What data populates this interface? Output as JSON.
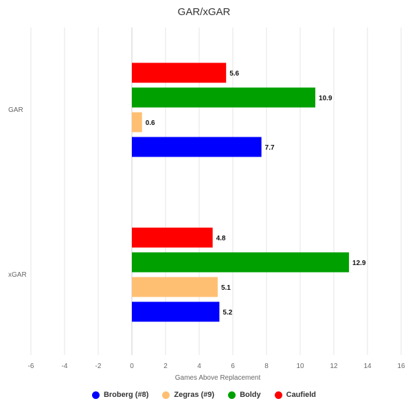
{
  "chart_data": {
    "type": "bar",
    "orientation": "horizontal",
    "title": "GAR/xGAR",
    "xlabel": "Games Above Replacement",
    "ylabel": "",
    "categories": [
      "GAR",
      "xGAR"
    ],
    "xlim": [
      -6,
      16
    ],
    "xticks": [
      "-6",
      "-4",
      "-2",
      "0",
      "2",
      "4",
      "6",
      "8",
      "10",
      "12",
      "14",
      "16"
    ],
    "grid": "vertical",
    "legend_position": "bottom",
    "series": [
      {
        "name": "Broberg (#8)",
        "color": "#0000ff",
        "values": [
          7.7,
          5.2
        ]
      },
      {
        "name": "Zegras (#9)",
        "color": "#ffbf73",
        "values": [
          0.6,
          5.1
        ]
      },
      {
        "name": "Boldy",
        "color": "#00a000",
        "values": [
          10.9,
          12.9
        ]
      },
      {
        "name": "Caufield",
        "color": "#ff0000",
        "values": [
          5.6,
          4.8
        ]
      }
    ]
  }
}
